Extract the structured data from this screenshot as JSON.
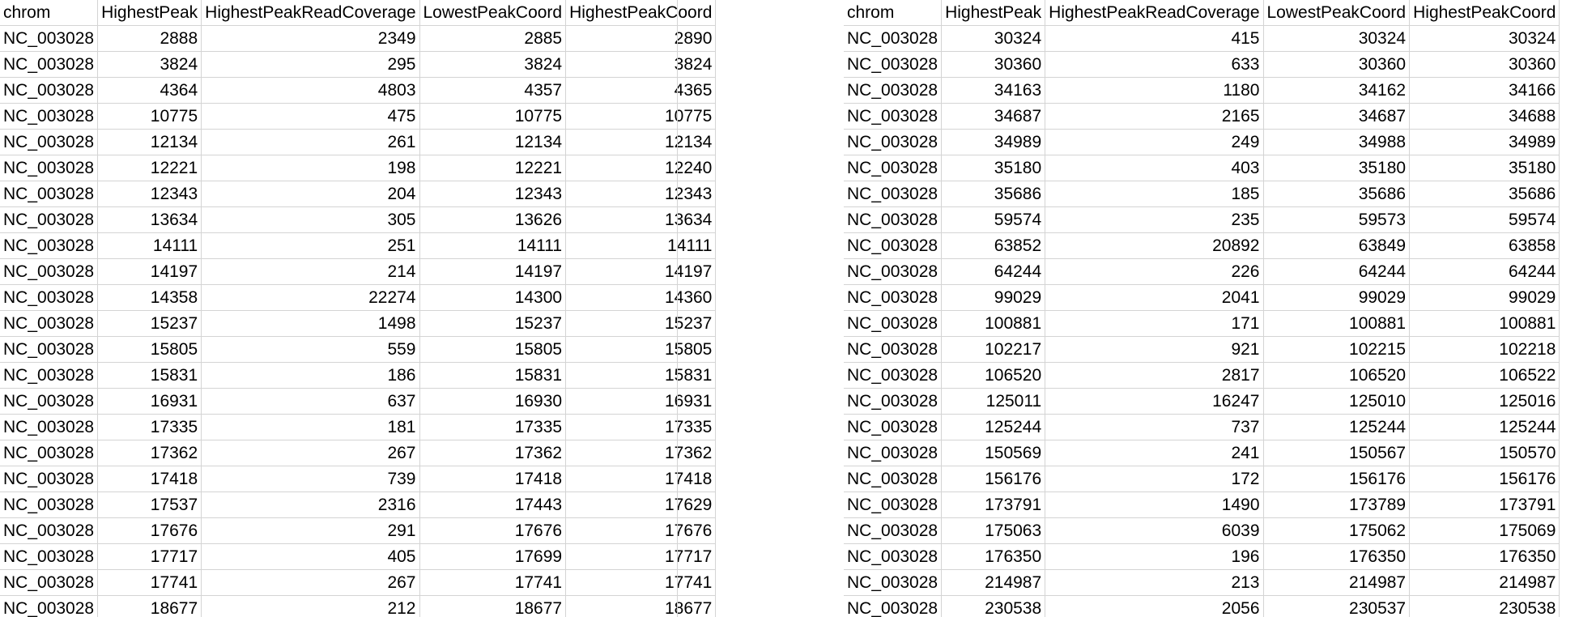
{
  "headers": [
    "chrom",
    "HighestPeak",
    "HighestPeakReadCoverage",
    "LowestPeakCoord",
    "HighestPeakCoord"
  ],
  "left_rows": [
    [
      "NC_003028",
      "2888",
      "2349",
      "2885",
      "2890"
    ],
    [
      "NC_003028",
      "3824",
      "295",
      "3824",
      "3824"
    ],
    [
      "NC_003028",
      "4364",
      "4803",
      "4357",
      "4365"
    ],
    [
      "NC_003028",
      "10775",
      "475",
      "10775",
      "10775"
    ],
    [
      "NC_003028",
      "12134",
      "261",
      "12134",
      "12134"
    ],
    [
      "NC_003028",
      "12221",
      "198",
      "12221",
      "12240"
    ],
    [
      "NC_003028",
      "12343",
      "204",
      "12343",
      "12343"
    ],
    [
      "NC_003028",
      "13634",
      "305",
      "13626",
      "13634"
    ],
    [
      "NC_003028",
      "14111",
      "251",
      "14111",
      "14111"
    ],
    [
      "NC_003028",
      "14197",
      "214",
      "14197",
      "14197"
    ],
    [
      "NC_003028",
      "14358",
      "22274",
      "14300",
      "14360"
    ],
    [
      "NC_003028",
      "15237",
      "1498",
      "15237",
      "15237"
    ],
    [
      "NC_003028",
      "15805",
      "559",
      "15805",
      "15805"
    ],
    [
      "NC_003028",
      "15831",
      "186",
      "15831",
      "15831"
    ],
    [
      "NC_003028",
      "16931",
      "637",
      "16930",
      "16931"
    ],
    [
      "NC_003028",
      "17335",
      "181",
      "17335",
      "17335"
    ],
    [
      "NC_003028",
      "17362",
      "267",
      "17362",
      "17362"
    ],
    [
      "NC_003028",
      "17418",
      "739",
      "17418",
      "17418"
    ],
    [
      "NC_003028",
      "17537",
      "2316",
      "17443",
      "17629"
    ],
    [
      "NC_003028",
      "17676",
      "291",
      "17676",
      "17676"
    ],
    [
      "NC_003028",
      "17717",
      "405",
      "17699",
      "17717"
    ],
    [
      "NC_003028",
      "17741",
      "267",
      "17741",
      "17741"
    ],
    [
      "NC_003028",
      "18677",
      "212",
      "18677",
      "18677"
    ]
  ],
  "right_rows": [
    [
      "NC_003028",
      "30324",
      "415",
      "30324",
      "30324"
    ],
    [
      "NC_003028",
      "30360",
      "633",
      "30360",
      "30360"
    ],
    [
      "NC_003028",
      "34163",
      "1180",
      "34162",
      "34166"
    ],
    [
      "NC_003028",
      "34687",
      "2165",
      "34687",
      "34688"
    ],
    [
      "NC_003028",
      "34989",
      "249",
      "34988",
      "34989"
    ],
    [
      "NC_003028",
      "35180",
      "403",
      "35180",
      "35180"
    ],
    [
      "NC_003028",
      "35686",
      "185",
      "35686",
      "35686"
    ],
    [
      "NC_003028",
      "59574",
      "235",
      "59573",
      "59574"
    ],
    [
      "NC_003028",
      "63852",
      "20892",
      "63849",
      "63858"
    ],
    [
      "NC_003028",
      "64244",
      "226",
      "64244",
      "64244"
    ],
    [
      "NC_003028",
      "99029",
      "2041",
      "99029",
      "99029"
    ],
    [
      "NC_003028",
      "100881",
      "171",
      "100881",
      "100881"
    ],
    [
      "NC_003028",
      "102217",
      "921",
      "102215",
      "102218"
    ],
    [
      "NC_003028",
      "106520",
      "2817",
      "106520",
      "106522"
    ],
    [
      "NC_003028",
      "125011",
      "16247",
      "125010",
      "125016"
    ],
    [
      "NC_003028",
      "125244",
      "737",
      "125244",
      "125244"
    ],
    [
      "NC_003028",
      "150569",
      "241",
      "150567",
      "150570"
    ],
    [
      "NC_003028",
      "156176",
      "172",
      "156176",
      "156176"
    ],
    [
      "NC_003028",
      "173791",
      "1490",
      "173789",
      "173791"
    ],
    [
      "NC_003028",
      "175063",
      "6039",
      "175062",
      "175069"
    ],
    [
      "NC_003028",
      "176350",
      "196",
      "176350",
      "176350"
    ],
    [
      "NC_003028",
      "214987",
      "213",
      "214987",
      "214987"
    ],
    [
      "NC_003028",
      "230538",
      "2056",
      "230537",
      "230538"
    ]
  ]
}
